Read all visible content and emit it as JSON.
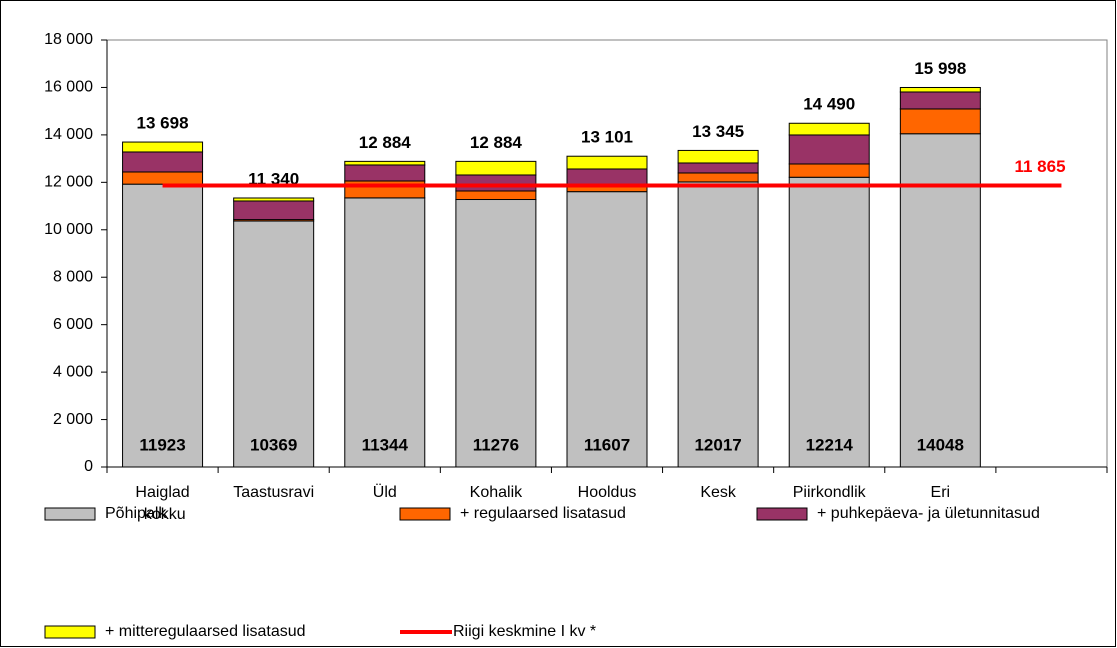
{
  "chart_data": {
    "type": "stacked_bar",
    "categories": [
      "Haiglad kokku",
      "Taastusravi",
      "Üld",
      "Kohalik",
      "Hooldus",
      "Kesk",
      "Piirkondlik",
      "Eri",
      null
    ],
    "series": [
      {
        "name": "Põhipalk",
        "color": "#c0c0c0",
        "values": [
          11923,
          10369,
          11344,
          11276,
          11607,
          12017,
          12214,
          14048,
          null
        ]
      },
      {
        "name": "+ regulaarsed lisatasud",
        "color": "#ff6600",
        "values": [
          514,
          60,
          713,
          360,
          300,
          378,
          560,
          1045,
          null
        ]
      },
      {
        "name": "+ puhkepäeva- ja ületunnitasud",
        "color": "#993366",
        "values": [
          843,
          785,
          675,
          674,
          656,
          421,
          1223,
          716,
          null
        ]
      },
      {
        "name": "+ mitteregulaarsed lisatasud",
        "color": "#ffff00",
        "values": [
          418,
          126,
          152,
          574,
          538,
          529,
          493,
          189,
          null
        ]
      }
    ],
    "totals": [
      13698,
      11340,
      12884,
      12884,
      13101,
      13345,
      14490,
      15998,
      null
    ],
    "total_labels": [
      "13 698",
      "11 340",
      "12 884",
      "12 884",
      "13 101",
      "13 345",
      "14 490",
      "15 998",
      null
    ],
    "reference_line": {
      "name": "Riigi keskmine I kv *",
      "color": "#ff0000",
      "value": 11865,
      "value_label": "11 865"
    },
    "ylim": [
      0,
      18000
    ],
    "yticks": [
      0,
      {
        "value": 2000,
        "label": "2 000"
      },
      {
        "value": 4000,
        "label": "4 000"
      },
      {
        "value": 6000,
        "label": "6 000"
      },
      {
        "value": 8000,
        "label": "8 000"
      },
      {
        "value": 10000,
        "label": "10 000"
      },
      {
        "value": 12000,
        "label": "12 000"
      },
      {
        "value": 14000,
        "label": "14 000"
      },
      {
        "value": 16000,
        "label": "16 000"
      },
      {
        "value": 18000,
        "label": "18 000"
      }
    ],
    "grid": false,
    "legend": "bottom"
  }
}
